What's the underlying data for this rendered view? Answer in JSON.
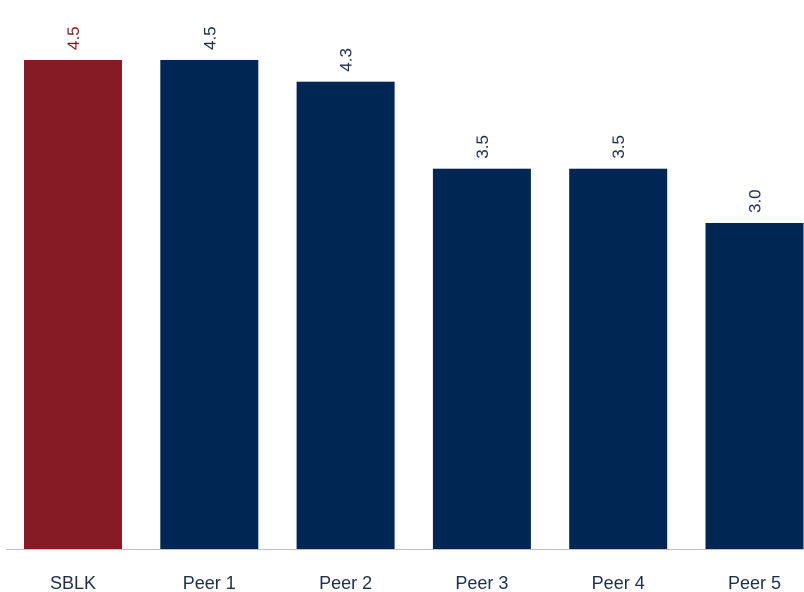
{
  "chart_data": {
    "type": "bar",
    "categories": [
      "SBLK",
      "Peer 1",
      "Peer 2",
      "Peer 3",
      "Peer 4",
      "Peer 5"
    ],
    "values": [
      4.5,
      4.5,
      4.3,
      3.5,
      3.5,
      3.0
    ],
    "value_labels": [
      "4.5",
      "4.5",
      "4.3",
      "3.5",
      "3.5",
      "3.0"
    ],
    "bar_colors": [
      "#861a25",
      "#002653",
      "#002653",
      "#002653",
      "#002653",
      "#002653"
    ],
    "label_colors": [
      "#861a25",
      "#1f2d4d",
      "#1f2d4d",
      "#1f2d4d",
      "#1f2d4d",
      "#1f2d4d"
    ],
    "axis_color": "#bfbfbf",
    "title": "",
    "xlabel": "",
    "ylabel": "",
    "ylim": [
      0,
      4.5
    ],
    "grid": false,
    "legend": "none"
  }
}
